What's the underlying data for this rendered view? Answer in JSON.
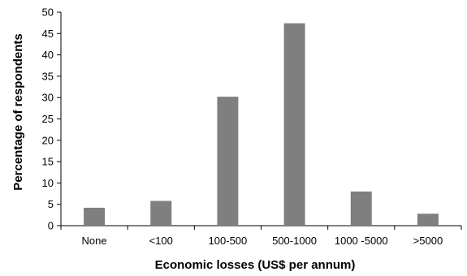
{
  "chart_data": {
    "type": "bar",
    "categories": [
      "None",
      "<100",
      "100-500",
      "500-1000",
      "1000 -5000",
      ">5000"
    ],
    "values": [
      4.2,
      5.8,
      30.2,
      47.4,
      8.0,
      2.8
    ],
    "title": "",
    "xlabel": "Economic losses (US$ per annum)",
    "ylabel": "Percentage of respondents",
    "ylim": [
      0,
      50
    ],
    "yticks": [
      0,
      5,
      10,
      15,
      20,
      25,
      30,
      35,
      40,
      45,
      50
    ],
    "grid": false,
    "bar_color": "#7f7f7f"
  }
}
